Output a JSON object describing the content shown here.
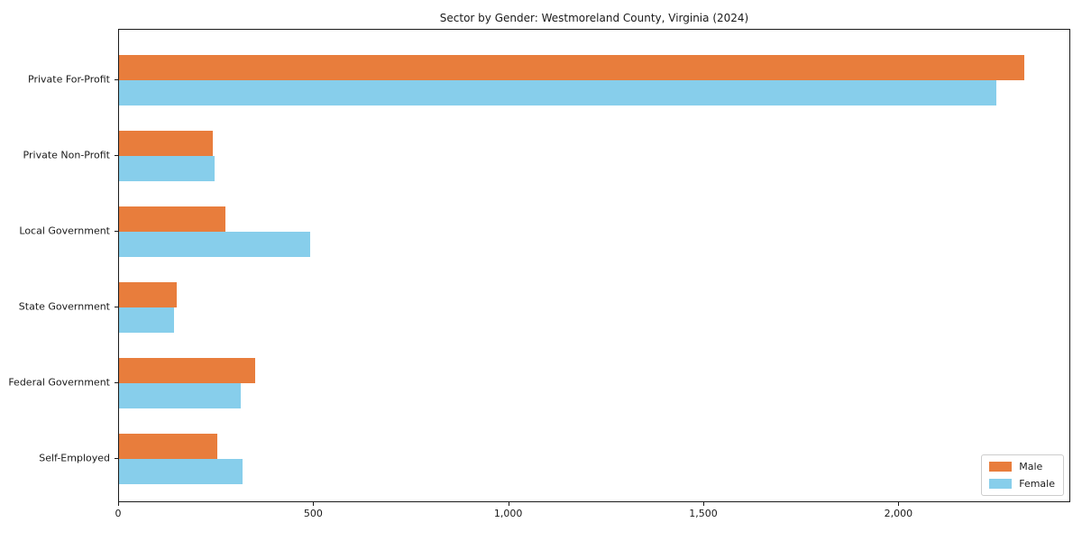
{
  "chart_data": {
    "type": "bar",
    "orientation": "horizontal",
    "title": "Sector by Gender: Westmoreland County, Virginia (2024)",
    "xlabel": "",
    "ylabel": "",
    "categories": [
      "Private For-Profit",
      "Private Non-Profit",
      "Local Government",
      "State Government",
      "Federal Government",
      "Self-Employed"
    ],
    "series": [
      {
        "name": "Male",
        "color": "#E87D3C",
        "values": [
          2320,
          240,
          273,
          148,
          349,
          253
        ]
      },
      {
        "name": "Female",
        "color": "#87CEEB",
        "values": [
          2248,
          244,
          490,
          140,
          313,
          317
        ]
      }
    ],
    "xlim": [
      0,
      2436
    ],
    "x_ticks": [
      0,
      500,
      1000,
      1500,
      2000
    ],
    "x_tick_labels": [
      "0",
      "500",
      "1,000",
      "1,500",
      "2,000"
    ],
    "grid": false,
    "legend_position": "lower right",
    "background_color": "#ffffff",
    "spine_color": "#1a1a1a"
  }
}
